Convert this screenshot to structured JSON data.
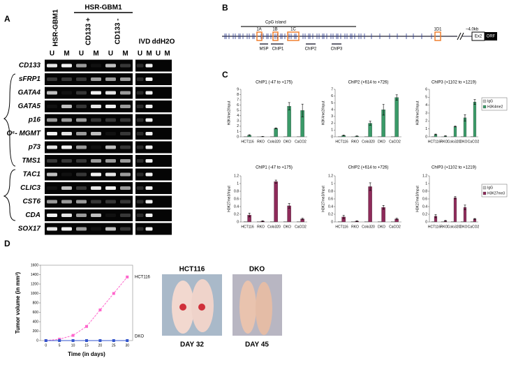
{
  "figure": {
    "panel_labels": [
      "A",
      "B",
      "C",
      "D"
    ],
    "gel": {
      "header": "HSR-GBM1",
      "group": "HSR-GBM1",
      "subgroups": [
        "CD133 +",
        "CD133 -"
      ],
      "controls": [
        "IVD",
        "ddH2O"
      ],
      "lane_labels": [
        "U",
        "M"
      ],
      "genes": [
        "CD133",
        "sFRP1",
        "GATA4",
        "GATA5",
        "p16",
        "O⁶- MGMT",
        "p73",
        "TMS1",
        "TAC1",
        "CLIC3",
        "CST6",
        "CDA",
        "SOX17"
      ]
    },
    "gene_map": {
      "cpg": "CpG island",
      "exons": [
        "1A",
        "1B",
        "1C",
        "1D1"
      ],
      "distance": "~4.0kb",
      "ex2": "Ex2",
      "orf": "ORF",
      "primers": [
        "MSP",
        "ChIP1",
        "ChIP2",
        "ChIP3"
      ]
    },
    "photos": {
      "lines": [
        "HCT116",
        "DKO"
      ],
      "days": [
        "DAY 32",
        "DAY 45"
      ]
    }
  },
  "chart_data": [
    {
      "type": "bar",
      "title": "ChIP1 (-47 to +175)",
      "ylabel": "H3K4me2/Input",
      "categories": [
        "HCT116",
        "RKO",
        "Colo320",
        "DKO",
        "CaCO2"
      ],
      "series": [
        {
          "name": "IgG",
          "color": "#c8c8c8",
          "values": [
            0.02,
            0.01,
            0.02,
            0.03,
            0.02
          ]
        },
        {
          "name": "H3K4me2",
          "color": "#3a9a68",
          "values": [
            0.3,
            0.05,
            1.6,
            5.8,
            5.0
          ],
          "errors": [
            0.1,
            0.03,
            0.1,
            0.7,
            1.2
          ]
        }
      ],
      "ylim": [
        0,
        9
      ],
      "yticks": [
        0,
        1,
        2,
        3,
        4,
        5,
        6,
        7,
        8,
        9
      ]
    },
    {
      "type": "bar",
      "title": "ChIP2 (+614 to +726)",
      "ylabel": "H3K4me2/Input",
      "categories": [
        "HCT116",
        "RKO",
        "Colo320",
        "DKO",
        "CaCO2"
      ],
      "series": [
        {
          "name": "IgG",
          "color": "#c8c8c8",
          "values": [
            0.02,
            0.01,
            0.02,
            0.03,
            0.02
          ]
        },
        {
          "name": "H3K4me2",
          "color": "#3a9a68",
          "values": [
            0.2,
            0.1,
            2.0,
            4.0,
            5.8
          ],
          "errors": [
            0.05,
            0.03,
            0.3,
            0.8,
            0.4
          ]
        }
      ],
      "ylim": [
        0,
        7
      ],
      "yticks": [
        0,
        1,
        2,
        3,
        4,
        5,
        6,
        7
      ]
    },
    {
      "type": "bar",
      "title": "ChIP3 (+1102 to +1219)",
      "ylabel": "H3K4me2/Input",
      "categories": [
        "HCT116",
        "RKO",
        "Colo320",
        "DKO",
        "CaCO2"
      ],
      "series": [
        {
          "name": "IgG",
          "color": "#c8c8c8",
          "values": [
            0.02,
            0.01,
            0.02,
            0.03,
            0.02
          ]
        },
        {
          "name": "H3K4me2",
          "color": "#3a9a68",
          "values": [
            0.3,
            0.1,
            1.3,
            2.4,
            4.4
          ],
          "errors": [
            0.05,
            0.03,
            0.05,
            0.4,
            0.3
          ]
        }
      ],
      "ylim": [
        0,
        6
      ],
      "yticks": [
        0,
        1,
        2,
        3,
        4,
        5,
        6
      ],
      "legend": "right"
    },
    {
      "type": "bar",
      "title": "ChIP1 (-47 to +175)",
      "ylabel": "H3K27me3/Input",
      "categories": [
        "HCT116",
        "RKO",
        "Colo320",
        "DKO",
        "CaCO2"
      ],
      "series": [
        {
          "name": "IgG",
          "color": "#c8c8c8",
          "values": [
            0.01,
            0.01,
            0.01,
            0.01,
            0.01
          ]
        },
        {
          "name": "H3K27me3",
          "color": "#8e2a5a",
          "values": [
            0.18,
            0.02,
            1.05,
            0.42,
            0.08
          ],
          "errors": [
            0.05,
            0.01,
            0.04,
            0.06,
            0.02
          ]
        }
      ],
      "ylim": [
        0,
        1.2
      ],
      "yticks": [
        0,
        0.2,
        0.4,
        0.6,
        0.8,
        1,
        1.2
      ]
    },
    {
      "type": "bar",
      "title": "ChIP2 (+614 to +726)",
      "ylabel": "H3K27me3/Input",
      "categories": [
        "HCT116",
        "RKO",
        "Colo320",
        "DKO",
        "CaCO2"
      ],
      "series": [
        {
          "name": "IgG",
          "color": "#c8c8c8",
          "values": [
            0.01,
            0.01,
            0.01,
            0.01,
            0.01
          ]
        },
        {
          "name": "H3K27me3",
          "color": "#8e2a5a",
          "values": [
            0.13,
            0.02,
            0.92,
            0.38,
            0.08
          ],
          "errors": [
            0.04,
            0.01,
            0.1,
            0.05,
            0.02
          ]
        }
      ],
      "ylim": [
        0,
        1.2
      ],
      "yticks": [
        0,
        0.2,
        0.4,
        0.6,
        0.8,
        1,
        1.2
      ]
    },
    {
      "type": "bar",
      "title": "ChIP3 (+1102 to +1219)",
      "ylabel": "H3K27me3/Input",
      "categories": [
        "HCT116",
        "RKO",
        "Colo320",
        "DKO",
        "CaCO2"
      ],
      "series": [
        {
          "name": "IgG",
          "color": "#c8c8c8",
          "values": [
            0.01,
            0.01,
            0.01,
            0.01,
            0.01
          ]
        },
        {
          "name": "H3K27me3",
          "color": "#8e2a5a",
          "values": [
            0.15,
            0.03,
            0.63,
            0.38,
            0.08
          ],
          "errors": [
            0.04,
            0.01,
            0.03,
            0.06,
            0.01
          ]
        }
      ],
      "ylim": [
        0,
        1.2
      ],
      "yticks": [
        0,
        0.2,
        0.4,
        0.6,
        0.8,
        1,
        1.2
      ],
      "legend": "right"
    },
    {
      "type": "line",
      "ylabel": "Tumor volume (in mm³)",
      "xlabel": "Time (in days)",
      "x": [
        0,
        5,
        10,
        15,
        20,
        25,
        30
      ],
      "series": [
        {
          "name": "HCT116",
          "color": "#ff66cc",
          "values": [
            0,
            30,
            110,
            300,
            650,
            1000,
            1350
          ]
        },
        {
          "name": "DKO",
          "color": "#3355cc",
          "values": [
            0,
            0,
            0,
            0,
            0,
            0,
            0
          ]
        }
      ],
      "xlim": [
        -2,
        32
      ],
      "xticks": [
        0,
        5,
        10,
        15,
        20,
        25,
        30
      ],
      "ylim": [
        0,
        1600
      ],
      "yticks": [
        0,
        200,
        400,
        600,
        800,
        1000,
        1200,
        1400,
        1600
      ]
    }
  ]
}
